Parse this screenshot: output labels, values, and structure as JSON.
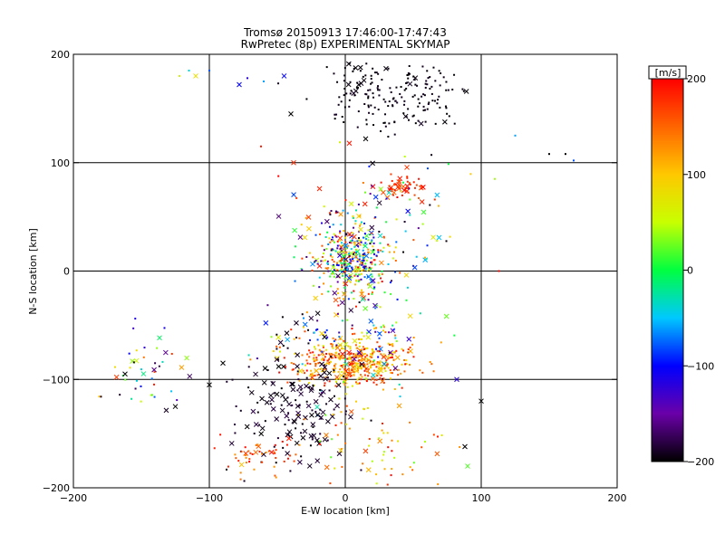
{
  "chart_data": {
    "type": "scatter",
    "title": "Tromsø 20150913 17:46:00-17:47:43",
    "subtitle": "RwPretec (8p) EXPERIMENTAL SKYMAP",
    "xlabel": "E-W location [km]",
    "ylabel": "N-S location [km]",
    "xlim": [
      -200,
      200
    ],
    "ylim": [
      -200,
      200
    ],
    "xticks": [
      -200,
      -100,
      0,
      100,
      200
    ],
    "yticks": [
      -200,
      -100,
      0,
      100,
      200
    ],
    "grid_lines": [
      -100,
      0,
      100
    ],
    "colorbar": {
      "label": "[m/s]",
      "min": -200,
      "max": 200,
      "ticks": [
        200,
        100,
        0,
        -100,
        -200
      ],
      "colors": [
        "#000000",
        "#6a00a8",
        "#0000ff",
        "#00c8ff",
        "#00ff40",
        "#c8ff00",
        "#ffc800",
        "#ff6400",
        "#ff0000"
      ]
    },
    "markers": [
      "dot",
      "x"
    ],
    "clusters": [
      {
        "cx": 40,
        "cy": 162,
        "sx": 25,
        "sy": 15,
        "n": 170,
        "vmin": -200,
        "vmax": -190,
        "xfrac": 0.05
      },
      {
        "cx": 5,
        "cy": 10,
        "sx": 14,
        "sy": 16,
        "n": 380,
        "vmin": -200,
        "vmax": 200,
        "xfrac": 0.12
      },
      {
        "cx": 5,
        "cy": -85,
        "sx": 22,
        "sy": 10,
        "n": 420,
        "vmin": 60,
        "vmax": 200,
        "xfrac": 0.1
      },
      {
        "cx": 8,
        "cy": -60,
        "sx": 30,
        "sy": 30,
        "n": 140,
        "vmin": -200,
        "vmax": 200,
        "xfrac": 0.25
      },
      {
        "cx": -40,
        "cy": -125,
        "sx": 22,
        "sy": 30,
        "n": 170,
        "vmin": -200,
        "vmax": -180,
        "xfrac": 0.55
      },
      {
        "cx": 42,
        "cy": 78,
        "sx": 10,
        "sy": 6,
        "n": 50,
        "vmin": 150,
        "vmax": 200,
        "xfrac": 0.4
      },
      {
        "cx": -145,
        "cy": -90,
        "sx": 14,
        "sy": 18,
        "n": 45,
        "vmin": -200,
        "vmax": 200,
        "xfrac": 0.3
      },
      {
        "cx": -60,
        "cy": -170,
        "sx": 15,
        "sy": 10,
        "n": 45,
        "vmin": 120,
        "vmax": 200,
        "xfrac": 0.1
      },
      {
        "cx": 20,
        "cy": -160,
        "sx": 30,
        "sy": 22,
        "n": 70,
        "vmin": 20,
        "vmax": 200,
        "xfrac": 0.12
      },
      {
        "cx": 15,
        "cy": 55,
        "sx": 35,
        "sy": 25,
        "n": 90,
        "vmin": -200,
        "vmax": 200,
        "xfrac": 0.3
      },
      {
        "cx": 5,
        "cy": 178,
        "sx": 10,
        "sy": 8,
        "n": 25,
        "vmin": -200,
        "vmax": -190,
        "xfrac": 0.25
      }
    ],
    "points": [
      {
        "x": -122,
        "y": 180,
        "v": 60,
        "m": "dot"
      },
      {
        "x": -115,
        "y": 185,
        "v": -40,
        "m": "dot"
      },
      {
        "x": -110,
        "y": 180,
        "v": 80,
        "m": "x"
      },
      {
        "x": -100,
        "y": 185,
        "v": -80,
        "m": "dot"
      },
      {
        "x": -78,
        "y": 172,
        "v": -100,
        "m": "x"
      },
      {
        "x": -72,
        "y": 178,
        "v": -120,
        "m": "dot"
      },
      {
        "x": -60,
        "y": 175,
        "v": -60,
        "m": "dot"
      },
      {
        "x": -45,
        "y": 180,
        "v": -100,
        "m": "x"
      },
      {
        "x": -40,
        "y": 145,
        "v": -200,
        "m": "x"
      },
      {
        "x": -62,
        "y": 115,
        "v": 190,
        "m": "dot"
      },
      {
        "x": -38,
        "y": 100,
        "v": 180,
        "m": "x"
      },
      {
        "x": 15,
        "y": 122,
        "v": -200,
        "m": "x"
      },
      {
        "x": 125,
        "y": 125,
        "v": -60,
        "m": "dot"
      },
      {
        "x": 150,
        "y": 108,
        "v": -200,
        "m": "dot"
      },
      {
        "x": 162,
        "y": 108,
        "v": -200,
        "m": "dot"
      },
      {
        "x": 168,
        "y": 102,
        "v": -80,
        "m": "dot"
      },
      {
        "x": 113,
        "y": 0,
        "v": 200,
        "m": "dot"
      },
      {
        "x": 110,
        "y": 85,
        "v": 40,
        "m": "dot"
      },
      {
        "x": 90,
        "y": -180,
        "v": 20,
        "m": "x"
      },
      {
        "x": 88,
        "y": -162,
        "v": -200,
        "m": "x"
      },
      {
        "x": 100,
        "y": -120,
        "v": -200,
        "m": "x"
      },
      {
        "x": 82,
        "y": -100,
        "v": -120,
        "m": "x"
      },
      {
        "x": -162,
        "y": -95,
        "v": -200,
        "m": "x"
      },
      {
        "x": -125,
        "y": -125,
        "v": -200,
        "m": "x"
      },
      {
        "x": -100,
        "y": -105,
        "v": -200,
        "m": "x"
      },
      {
        "x": -90,
        "y": -85,
        "v": -200,
        "m": "x"
      }
    ]
  }
}
